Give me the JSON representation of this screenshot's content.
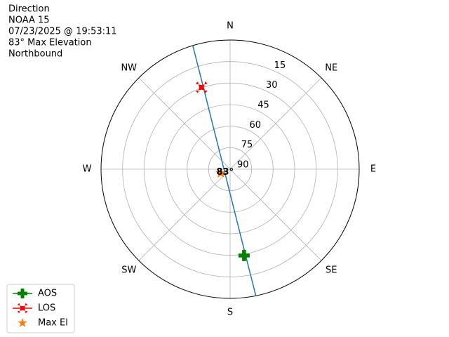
{
  "chart_data": {
    "type": "polar",
    "text_lines": [
      "Direction",
      "NOAA 15",
      "07/23/2025 @ 19:53:11",
      "83° Max Elevation",
      "Northbound"
    ],
    "theta_ticks": [
      {
        "value": 0,
        "label": "N"
      },
      {
        "value": 45,
        "label": "NE"
      },
      {
        "value": 90,
        "label": "E"
      },
      {
        "value": 135,
        "label": "SE"
      },
      {
        "value": 180,
        "label": "S"
      },
      {
        "value": 225,
        "label": "SW"
      },
      {
        "value": 270,
        "label": "W"
      },
      {
        "value": 315,
        "label": "NW"
      }
    ],
    "rlim": [
      90,
      0
    ],
    "rticks": [
      90,
      75,
      60,
      45,
      30,
      15
    ],
    "grid": true,
    "legend": "lower left",
    "track": {
      "color": "#1f77b4",
      "azimuth": [
        168.5,
        169.8,
        173.5,
        236.3,
        337.8,
        341.9,
        343.2
      ],
      "elevation": [
        0,
        28.9,
        58.5,
        85.6,
        60.4,
        29.8,
        0
      ]
    },
    "markers": [
      {
        "name": "AOS",
        "color": "#008000",
        "marker": "plus",
        "azimuth": 170.8,
        "elevation": 29.1
      },
      {
        "name": "LOS",
        "color": "#ff0000",
        "marker": "x",
        "azimuth": 340.7,
        "elevation": 29.6
      },
      {
        "name": "Max El",
        "color": "#ff7f0e",
        "marker": "star",
        "azimuth": 247,
        "elevation": 83,
        "value_label": "83°"
      }
    ]
  }
}
